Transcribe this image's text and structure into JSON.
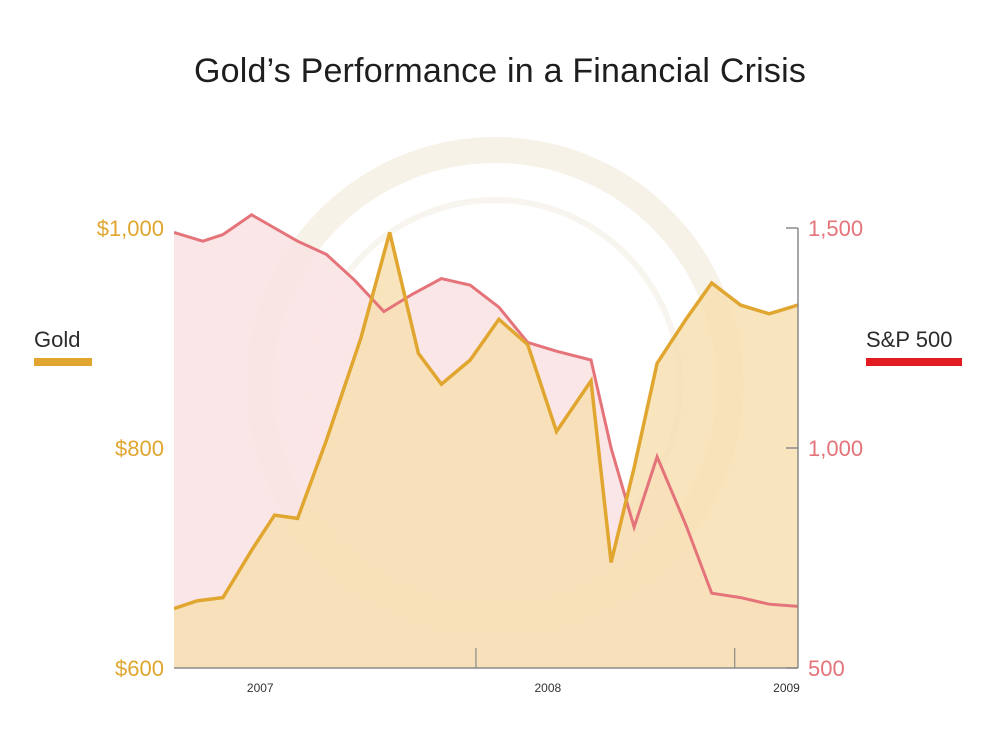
{
  "chart_data": {
    "type": "line",
    "title": "Gold’s Performance in a Financial Crisis",
    "x_ticks": [
      {
        "label": "2007",
        "x": 0.25
      },
      {
        "label": "2008",
        "x": 1.25
      },
      {
        "label": "2009",
        "x": 2.08
      }
    ],
    "x_range": [
      -0.05,
      2.12
    ],
    "left_axis": {
      "series": "Gold",
      "range": [
        600,
        1000
      ],
      "ticks": [
        {
          "value": 600,
          "label": "$600"
        },
        {
          "value": 800,
          "label": "$800"
        },
        {
          "value": 1000,
          "label": "$1,000"
        }
      ]
    },
    "right_axis": {
      "series": "S&P 500",
      "range": [
        500,
        1500
      ],
      "ticks": [
        {
          "value": 500,
          "label": "500"
        },
        {
          "value": 1000,
          "label": "1,000"
        },
        {
          "value": 1500,
          "label": "1,500"
        }
      ]
    },
    "series": [
      {
        "name": "Gold",
        "axis": "left",
        "color": "#e0a630",
        "fill": "#f7dfb2",
        "x": [
          -0.05,
          0.03,
          0.12,
          0.22,
          0.3,
          0.38,
          0.48,
          0.6,
          0.7,
          0.8,
          0.88,
          0.98,
          1.08,
          1.18,
          1.28,
          1.4,
          1.47,
          1.55,
          1.63,
          1.73,
          1.82,
          1.92,
          2.02,
          2.12
        ],
        "values": [
          654,
          661,
          664,
          707,
          739,
          736,
          807,
          900,
          996,
          886,
          858,
          880,
          917,
          894,
          815,
          861,
          696,
          782,
          877,
          917,
          950,
          930,
          922,
          930
        ]
      },
      {
        "name": "S&P 500",
        "axis": "right",
        "color": "#e5737a",
        "fill": "#fbe3e4",
        "x": [
          -0.05,
          0.05,
          0.12,
          0.22,
          0.3,
          0.38,
          0.48,
          0.58,
          0.68,
          0.78,
          0.88,
          0.98,
          1.08,
          1.18,
          1.28,
          1.4,
          1.47,
          1.55,
          1.63,
          1.73,
          1.82,
          1.92,
          2.02,
          2.12
        ],
        "values": [
          1490,
          1470,
          1485,
          1530,
          1500,
          1470,
          1440,
          1380,
          1310,
          1350,
          1385,
          1370,
          1320,
          1240,
          1220,
          1200,
          1000,
          820,
          980,
          825,
          670,
          660,
          645,
          640
        ]
      }
    ]
  },
  "legend": {
    "gold_label": "Gold",
    "gold_color": "#e0a630",
    "sp_label": "S&P 500",
    "sp_color": "#e31b23"
  }
}
